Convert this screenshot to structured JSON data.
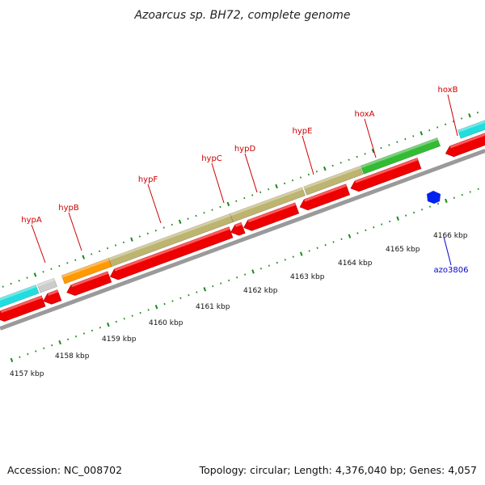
{
  "title": "Azoarcus sp. BH72, complete genome",
  "footer": {
    "accession": "Accession: NC_008702",
    "summary": "Topology: circular; Length: 4,376,040 bp; Genes: 4,057"
  },
  "colors": {
    "backbone": "#9a9a9a",
    "cds": "#ee0000",
    "gene_label": "#cc0000",
    "highlight_label": "#0000cc",
    "highlight_gene": "#0022ee",
    "tick": "#1a8a1a",
    "cyan": "#22dddd",
    "olive": "#bdb470",
    "green": "#33bb33",
    "orange": "#ff9900",
    "grey": "#cccccc"
  },
  "scale_labels": [
    "4157 kbp",
    "4158 kbp",
    "4159 kbp",
    "4160 kbp",
    "4161 kbp",
    "4162 kbp",
    "4163 kbp",
    "4164 kbp",
    "4165 kbp",
    "4166 kbp"
  ],
  "gene_labels": [
    {
      "name": "hypA",
      "kind": "normal"
    },
    {
      "name": "hypB",
      "kind": "normal"
    },
    {
      "name": "hypF",
      "kind": "normal"
    },
    {
      "name": "hypC",
      "kind": "normal"
    },
    {
      "name": "hypD",
      "kind": "normal"
    },
    {
      "name": "hypE",
      "kind": "normal"
    },
    {
      "name": "hoxA",
      "kind": "normal"
    },
    {
      "name": "hoxB",
      "kind": "normal"
    },
    {
      "name": "azo3806",
      "kind": "highlight"
    }
  ]
}
